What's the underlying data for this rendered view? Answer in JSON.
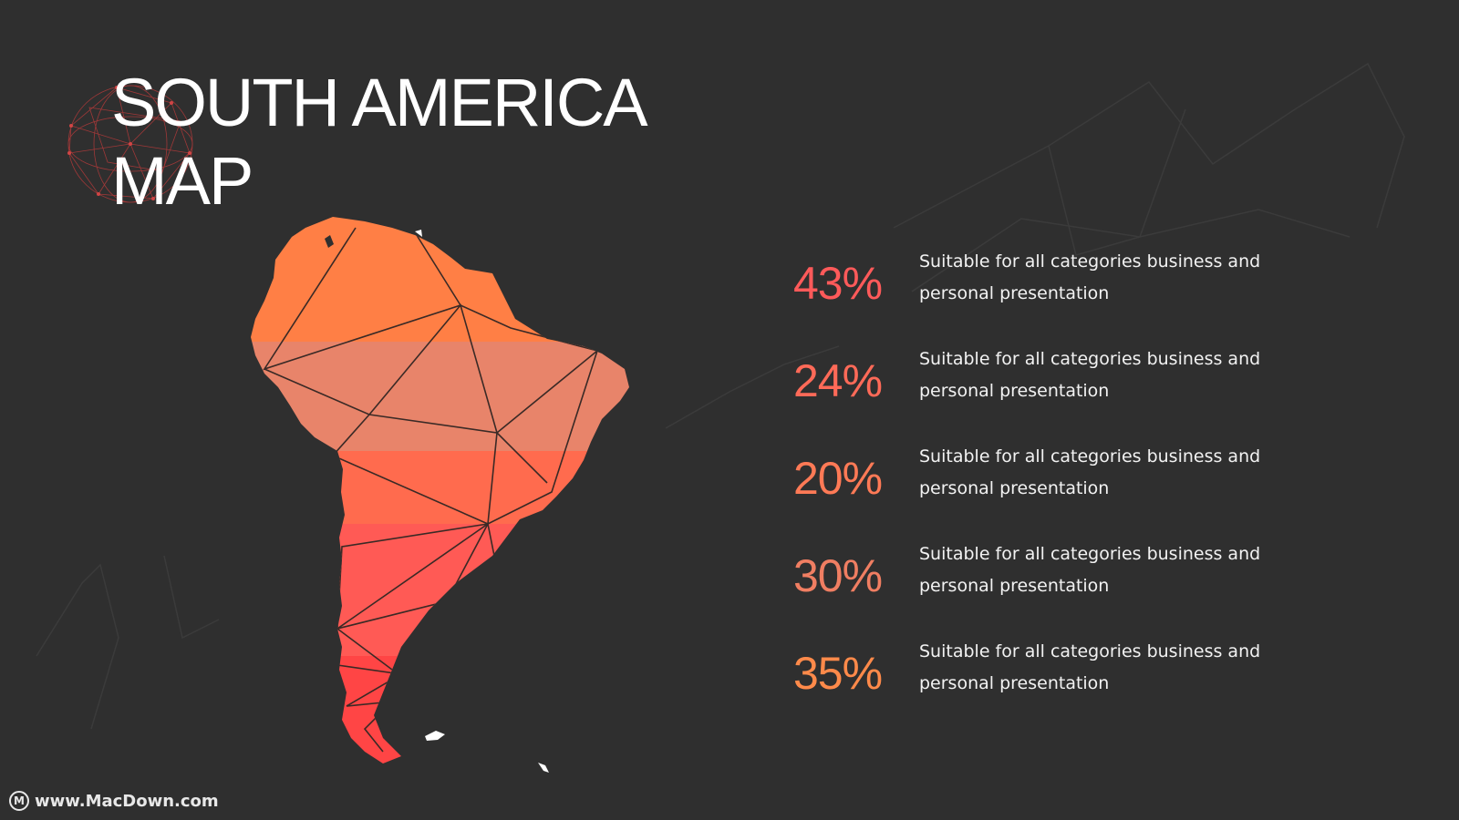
{
  "slide": {
    "title_line1": "SOUTH AMERICA",
    "title_line2": "MAP",
    "accent_colors": [
      "#ff7f45",
      "#e8846a",
      "#ff6b4e",
      "#ff5a55",
      "#ff4444"
    ]
  },
  "stats": [
    {
      "value": "43%",
      "description": "Suitable for all categories business and personal presentation",
      "color": "#ff5a5a"
    },
    {
      "value": "24%",
      "description": "Suitable for all categories business and personal presentation",
      "color": "#ff6a58"
    },
    {
      "value": "20%",
      "description": "Suitable for all categories business and personal presentation",
      "color": "#ff7a56"
    },
    {
      "value": "30%",
      "description": "Suitable for all categories business and personal presentation",
      "color": "#f07e62"
    },
    {
      "value": "35%",
      "description": "Suitable for all categories business and personal presentation",
      "color": "#ff8a4a"
    }
  ],
  "watermark": {
    "text": "www.MacDown.com",
    "logo_letter": "M"
  },
  "icons": [
    "wireframe-globe-icon",
    "macdown-logo-icon"
  ]
}
